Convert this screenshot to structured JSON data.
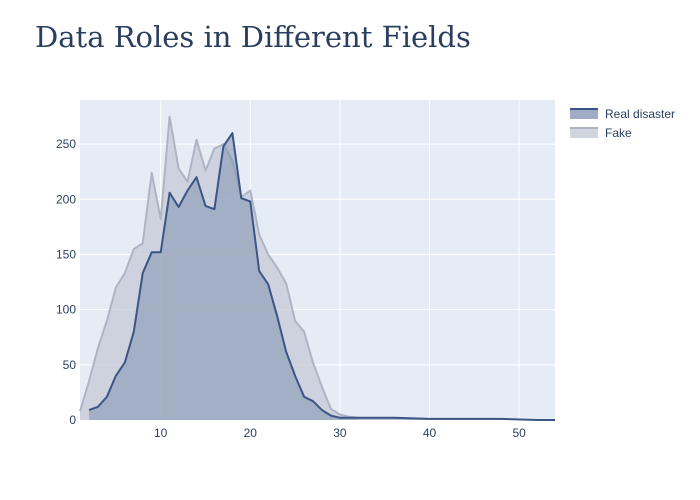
{
  "chart_data": {
    "type": "area",
    "title": "Data Roles in Different Fields",
    "xlabel": "",
    "ylabel": "",
    "xlim": [
      1,
      54
    ],
    "ylim": [
      0,
      290
    ],
    "x_ticks": [
      10,
      20,
      30,
      40,
      50
    ],
    "y_ticks": [
      0,
      50,
      100,
      150,
      200,
      250
    ],
    "grid": true,
    "legend_position": "top-right",
    "series": [
      {
        "name": "Fake",
        "color": "#c5cad6",
        "line_color": "#aeb4c4",
        "x": [
          1,
          2,
          3,
          4,
          5,
          6,
          7,
          8,
          9,
          10,
          11,
          12,
          13,
          14,
          15,
          16,
          17,
          18,
          19,
          20,
          21,
          22,
          23,
          24,
          25,
          26,
          27,
          28,
          29,
          30,
          31,
          32
        ],
        "y": [
          8,
          35,
          65,
          90,
          120,
          133,
          155,
          160,
          224,
          182,
          275,
          228,
          216,
          254,
          226,
          246,
          250,
          235,
          202,
          208,
          168,
          150,
          138,
          124,
          90,
          80,
          52,
          30,
          10,
          5,
          3,
          2
        ]
      },
      {
        "name": "Real disaster",
        "color": "#8797b4",
        "line_color": "#3c5587",
        "x": [
          2,
          3,
          4,
          5,
          6,
          7,
          8,
          9,
          10,
          11,
          12,
          13,
          14,
          15,
          16,
          17,
          18,
          19,
          20,
          21,
          22,
          23,
          24,
          25,
          26,
          27,
          28,
          29,
          30,
          31,
          33,
          36,
          40,
          44,
          48,
          52,
          54
        ],
        "y": [
          9,
          12,
          21,
          40,
          52,
          80,
          133,
          152,
          152,
          206,
          193,
          208,
          220,
          194,
          191,
          248,
          260,
          201,
          198,
          135,
          123,
          94,
          62,
          40,
          21,
          17,
          9,
          4,
          2,
          2,
          2,
          2,
          1,
          1,
          1,
          0,
          0
        ]
      }
    ]
  }
}
